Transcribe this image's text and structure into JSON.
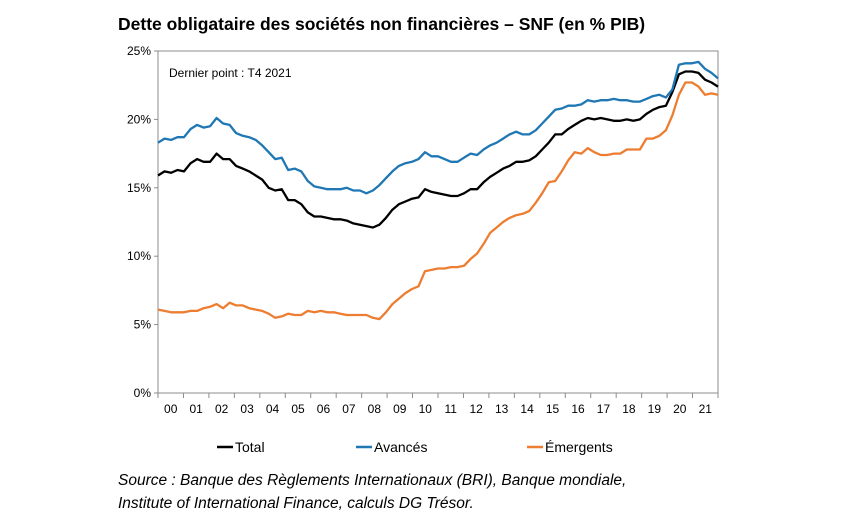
{
  "title": "Dette obligataire des sociétés non financières – SNF (en % PIB)",
  "annotation": "Dernier point : T4 2021",
  "source_lines": [
    "Source : Banque des Règlements Internationaux (BRI), Banque mondiale,",
    "Institute of International Finance, calculs DG Trésor."
  ],
  "chart_data": {
    "type": "line",
    "title": "Dette obligataire des sociétés non financières – SNF (en % PIB)",
    "xlabel": "",
    "ylabel": "",
    "x_start_year": 2000,
    "x_end_year": 2022,
    "frequency": "quarterly",
    "x_tick_labels": [
      "00",
      "01",
      "02",
      "03",
      "04",
      "05",
      "06",
      "07",
      "08",
      "09",
      "10",
      "11",
      "12",
      "13",
      "14",
      "15",
      "16",
      "17",
      "18",
      "19",
      "20",
      "21"
    ],
    "y_ticks": [
      0,
      5,
      10,
      15,
      20,
      25
    ],
    "y_tick_labels": [
      "0%",
      "5%",
      "10%",
      "15%",
      "20%",
      "25%"
    ],
    "ylim": [
      0,
      25
    ],
    "grid": false,
    "legend_position": "bottom",
    "series": [
      {
        "name": "Total",
        "color": "#000000",
        "values": [
          15.9,
          16.2,
          16.1,
          16.3,
          16.2,
          16.8,
          17.1,
          16.9,
          16.9,
          17.5,
          17.1,
          17.1,
          16.6,
          16.4,
          16.2,
          15.9,
          15.6,
          15.0,
          14.8,
          14.9,
          14.1,
          14.1,
          13.8,
          13.2,
          12.9,
          12.9,
          12.8,
          12.7,
          12.7,
          12.6,
          12.4,
          12.3,
          12.2,
          12.1,
          12.3,
          12.8,
          13.4,
          13.8,
          14.0,
          14.2,
          14.3,
          14.9,
          14.7,
          14.6,
          14.5,
          14.4,
          14.4,
          14.6,
          14.9,
          14.9,
          15.4,
          15.8,
          16.1,
          16.4,
          16.6,
          16.9,
          16.9,
          17.0,
          17.3,
          17.8,
          18.3,
          18.9,
          18.9,
          19.3,
          19.6,
          19.9,
          20.1,
          20.0,
          20.1,
          20.0,
          19.9,
          19.9,
          20.0,
          19.9,
          20.0,
          20.4,
          20.7,
          20.9,
          21.0,
          22.0,
          23.3,
          23.5,
          23.5,
          23.4,
          22.9,
          22.7,
          22.4
        ]
      },
      {
        "name": "Avancés",
        "color": "#1f77b4",
        "values": [
          18.3,
          18.6,
          18.5,
          18.7,
          18.7,
          19.3,
          19.6,
          19.4,
          19.5,
          20.1,
          19.7,
          19.6,
          19.0,
          18.8,
          18.7,
          18.5,
          18.1,
          17.6,
          17.1,
          17.2,
          16.3,
          16.4,
          16.2,
          15.5,
          15.1,
          15.0,
          14.9,
          14.9,
          14.9,
          15.0,
          14.8,
          14.8,
          14.6,
          14.8,
          15.2,
          15.7,
          16.2,
          16.6,
          16.8,
          16.9,
          17.1,
          17.6,
          17.3,
          17.3,
          17.1,
          16.9,
          16.9,
          17.2,
          17.5,
          17.4,
          17.8,
          18.1,
          18.3,
          18.6,
          18.9,
          19.1,
          18.9,
          18.9,
          19.2,
          19.7,
          20.2,
          20.7,
          20.8,
          21.0,
          21.0,
          21.1,
          21.4,
          21.3,
          21.4,
          21.4,
          21.5,
          21.4,
          21.4,
          21.3,
          21.3,
          21.5,
          21.7,
          21.8,
          21.6,
          22.2,
          24.0,
          24.1,
          24.1,
          24.2,
          23.7,
          23.4,
          23.0
        ]
      },
      {
        "name": "Émergents",
        "color": "#ed7d31",
        "values": [
          6.1,
          6.0,
          5.9,
          5.9,
          5.9,
          6.0,
          6.0,
          6.2,
          6.3,
          6.5,
          6.2,
          6.6,
          6.4,
          6.4,
          6.2,
          6.1,
          6.0,
          5.8,
          5.5,
          5.6,
          5.8,
          5.7,
          5.7,
          6.0,
          5.9,
          6.0,
          5.9,
          5.9,
          5.8,
          5.7,
          5.7,
          5.7,
          5.7,
          5.5,
          5.4,
          5.9,
          6.5,
          6.9,
          7.3,
          7.6,
          7.8,
          8.9,
          9.0,
          9.1,
          9.1,
          9.2,
          9.2,
          9.3,
          9.8,
          10.2,
          10.9,
          11.7,
          12.1,
          12.5,
          12.8,
          13.0,
          13.1,
          13.3,
          13.9,
          14.6,
          15.4,
          15.5,
          16.2,
          17.0,
          17.6,
          17.5,
          17.9,
          17.6,
          17.4,
          17.4,
          17.5,
          17.5,
          17.8,
          17.8,
          17.8,
          18.6,
          18.6,
          18.8,
          19.2,
          20.3,
          21.8,
          22.7,
          22.7,
          22.4,
          21.8,
          21.9,
          21.8
        ]
      }
    ]
  }
}
